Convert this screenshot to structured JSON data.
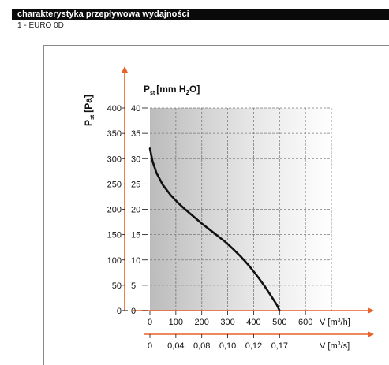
{
  "header": {
    "title": "charakterystyka przepływowa wydajności"
  },
  "model": {
    "label": "1 - EURO 0D"
  },
  "chart_data": {
    "type": "line",
    "y_axis_pa": {
      "title_main": "P",
      "title_sub": "st",
      "title_unit": "[Pa]",
      "ticks": [
        "0",
        "50",
        "100",
        "150",
        "200",
        "250",
        "300",
        "350",
        "400"
      ],
      "range": [
        0,
        400
      ]
    },
    "y_axis_mmh2o": {
      "title_main": "P",
      "title_sub": "st",
      "title_unit_a": "[mm H",
      "title_unit_sub": "2",
      "title_unit_b": "O]",
      "ticks": [
        "0",
        "5",
        "10",
        "15",
        "20",
        "25",
        "30",
        "35",
        "40"
      ],
      "range": [
        0,
        40
      ]
    },
    "x_axis_m3h": {
      "label": "V [m",
      "label_sup": "3",
      "label_end": "/h]",
      "ticks": [
        "0",
        "100",
        "200",
        "300",
        "400",
        "500",
        "600"
      ],
      "range": [
        0,
        700
      ]
    },
    "x_axis_m3s": {
      "label": "V [m",
      "label_sup": "3",
      "label_end": "/s]",
      "ticks": [
        "0",
        "0,04",
        "0,08",
        "0,10",
        "0,12",
        "0,17"
      ]
    },
    "series": [
      {
        "x": [
          0,
          10,
          25,
          50,
          80,
          110,
          140,
          170,
          200,
          230,
          260,
          290,
          320,
          350,
          380,
          410,
          440,
          470,
          490,
          500
        ],
        "y": [
          320,
          295,
          272,
          248,
          228,
          212,
          198,
          185,
          172,
          160,
          148,
          136,
          122,
          107,
          90,
          71,
          50,
          27,
          11,
          0
        ]
      }
    ],
    "grid": true
  },
  "colors": {
    "axis_arrow": "#e8622a",
    "curve": "#111111",
    "grid": "#7a7a7a"
  }
}
